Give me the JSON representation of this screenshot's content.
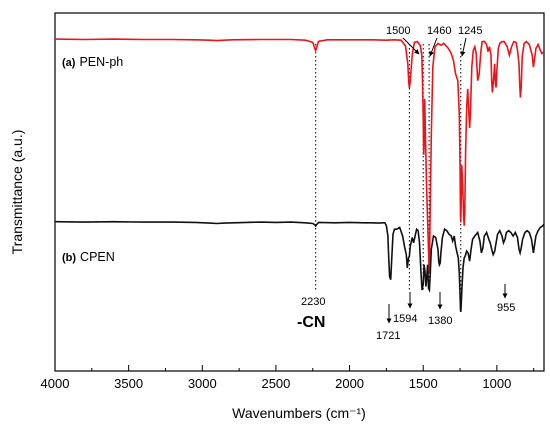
{
  "chart_data": {
    "type": "line",
    "xlabel": "Wavenumbers (cm⁻¹)",
    "ylabel": "Transmittance (a.u.)",
    "xlim": [
      4000,
      680
    ],
    "x_reversed": true,
    "ylim": [
      0,
      100
    ],
    "x_ticks": [
      4000,
      3500,
      3000,
      2500,
      2000,
      1500,
      1000
    ],
    "x_tick_labels": [
      "4000",
      "3500",
      "3000",
      "2500",
      "2000",
      "1500",
      "1000"
    ],
    "y_ticks_shown": false,
    "grid": false,
    "series": [
      {
        "name": "PEN-ph",
        "tag": "(a)",
        "color": "#e8161b",
        "points": [
          [
            4000,
            92.7
          ],
          [
            3800,
            92.6
          ],
          [
            3600,
            92.7
          ],
          [
            3400,
            92.6
          ],
          [
            3200,
            92.6
          ],
          [
            3050,
            92.5
          ],
          [
            2950,
            92.4
          ],
          [
            2900,
            92.3
          ],
          [
            2800,
            92.5
          ],
          [
            2600,
            92.6
          ],
          [
            2400,
            92.6
          ],
          [
            2300,
            92.4
          ],
          [
            2250,
            91.8
          ],
          [
            2235,
            89.9
          ],
          [
            2230,
            89.5
          ],
          [
            2225,
            90.2
          ],
          [
            2210,
            92.1
          ],
          [
            2150,
            92.5
          ],
          [
            2000,
            92.5
          ],
          [
            1850,
            92.5
          ],
          [
            1750,
            92.4
          ],
          [
            1700,
            92.5
          ],
          [
            1650,
            92.4
          ],
          [
            1620,
            90.8
          ],
          [
            1605,
            85.8
          ],
          [
            1598,
            80.5
          ],
          [
            1594,
            79.0
          ],
          [
            1588,
            81.1
          ],
          [
            1575,
            88.2
          ],
          [
            1560,
            91.8
          ],
          [
            1540,
            92.0
          ],
          [
            1520,
            90.9
          ],
          [
            1510,
            88.2
          ],
          [
            1505,
            81.1
          ],
          [
            1500,
            70.8
          ],
          [
            1497,
            60.4
          ],
          [
            1495,
            62.3
          ],
          [
            1490,
            76.0
          ],
          [
            1485,
            66.5
          ],
          [
            1478,
            52.4
          ],
          [
            1472,
            44.8
          ],
          [
            1466,
            36.8
          ],
          [
            1463,
            32.1
          ],
          [
            1460,
            27.4
          ],
          [
            1457,
            33.0
          ],
          [
            1452,
            47.2
          ],
          [
            1445,
            66.0
          ],
          [
            1435,
            84.9
          ],
          [
            1420,
            90.6
          ],
          [
            1400,
            91.5
          ],
          [
            1380,
            91.0
          ],
          [
            1360,
            91.5
          ],
          [
            1330,
            90.1
          ],
          [
            1310,
            88.7
          ],
          [
            1295,
            86.8
          ],
          [
            1280,
            83.0
          ],
          [
            1265,
            81.1
          ],
          [
            1255,
            71.7
          ],
          [
            1250,
            58.5
          ],
          [
            1247,
            43.4
          ],
          [
            1245,
            41.5
          ],
          [
            1242,
            48.1
          ],
          [
            1238,
            57.5
          ],
          [
            1232,
            51.9
          ],
          [
            1226,
            43.4
          ],
          [
            1222,
            40.6
          ],
          [
            1218,
            44.3
          ],
          [
            1212,
            61.3
          ],
          [
            1205,
            73.6
          ],
          [
            1198,
            78.8
          ],
          [
            1192,
            73.6
          ],
          [
            1185,
            67.9
          ],
          [
            1180,
            71.7
          ],
          [
            1170,
            84.9
          ],
          [
            1160,
            89.6
          ],
          [
            1150,
            90.6
          ],
          [
            1140,
            88.7
          ],
          [
            1130,
            81.1
          ],
          [
            1120,
            83.0
          ],
          [
            1110,
            88.7
          ],
          [
            1100,
            92.0
          ],
          [
            1085,
            92.1
          ],
          [
            1070,
            91.2
          ],
          [
            1060,
            89.2
          ],
          [
            1050,
            90.6
          ],
          [
            1040,
            88.2
          ],
          [
            1035,
            81.1
          ],
          [
            1030,
            77.8
          ],
          [
            1025,
            80.2
          ],
          [
            1015,
            85.8
          ],
          [
            1010,
            80.2
          ],
          [
            1005,
            79.2
          ],
          [
            1000,
            84.0
          ],
          [
            990,
            90.1
          ],
          [
            980,
            91.5
          ],
          [
            965,
            92.0
          ],
          [
            950,
            92.0
          ],
          [
            930,
            90.6
          ],
          [
            915,
            88.2
          ],
          [
            900,
            90.6
          ],
          [
            885,
            92.0
          ],
          [
            870,
            91.8
          ],
          [
            860,
            89.6
          ],
          [
            850,
            85.8
          ],
          [
            845,
            80.2
          ],
          [
            840,
            76.4
          ],
          [
            835,
            79.2
          ],
          [
            828,
            87.7
          ],
          [
            815,
            91.5
          ],
          [
            800,
            92.0
          ],
          [
            780,
            91.2
          ],
          [
            760,
            88.2
          ],
          [
            752,
            84.9
          ],
          [
            745,
            86.8
          ],
          [
            735,
            90.1
          ],
          [
            720,
            91.2
          ],
          [
            705,
            89.6
          ],
          [
            695,
            88.7
          ],
          [
            680,
            89.2
          ]
        ]
      },
      {
        "name": "CPEN",
        "tag": "(b)",
        "color": "#111111",
        "points": [
          [
            4000,
            41.7
          ],
          [
            3800,
            41.6
          ],
          [
            3600,
            41.7
          ],
          [
            3400,
            41.6
          ],
          [
            3200,
            41.6
          ],
          [
            3050,
            41.5
          ],
          [
            2950,
            41.3
          ],
          [
            2900,
            41.2
          ],
          [
            2850,
            41.3
          ],
          [
            2700,
            41.5
          ],
          [
            2600,
            41.6
          ],
          [
            2500,
            41.5
          ],
          [
            2400,
            41.6
          ],
          [
            2300,
            41.4
          ],
          [
            2250,
            41.2
          ],
          [
            2235,
            40.8
          ],
          [
            2230,
            40.5
          ],
          [
            2225,
            40.8
          ],
          [
            2210,
            41.5
          ],
          [
            2100,
            41.4
          ],
          [
            2000,
            41.5
          ],
          [
            1900,
            41.4
          ],
          [
            1850,
            41.4
          ],
          [
            1800,
            41.3
          ],
          [
            1780,
            41.4
          ],
          [
            1760,
            41.4
          ],
          [
            1750,
            40.6
          ],
          [
            1740,
            37.7
          ],
          [
            1735,
            32.5
          ],
          [
            1728,
            26.4
          ],
          [
            1721,
            25.5
          ],
          [
            1714,
            31.1
          ],
          [
            1705,
            38.2
          ],
          [
            1695,
            39.6
          ],
          [
            1680,
            39.6
          ],
          [
            1660,
            40.1
          ],
          [
            1640,
            37.7
          ],
          [
            1625,
            34.4
          ],
          [
            1615,
            32.5
          ],
          [
            1608,
            28.8
          ],
          [
            1600,
            31.6
          ],
          [
            1594,
            32.1
          ],
          [
            1588,
            34.9
          ],
          [
            1575,
            37.3
          ],
          [
            1565,
            35.8
          ],
          [
            1555,
            37.7
          ],
          [
            1545,
            39.6
          ],
          [
            1535,
            39.2
          ],
          [
            1525,
            35.8
          ],
          [
            1515,
            27.4
          ],
          [
            1508,
            22.6
          ],
          [
            1500,
            24.1
          ],
          [
            1494,
            29.7
          ],
          [
            1488,
            27.8
          ],
          [
            1482,
            23.6
          ],
          [
            1476,
            26.4
          ],
          [
            1470,
            29.7
          ],
          [
            1464,
            23.1
          ],
          [
            1458,
            22.6
          ],
          [
            1452,
            27.4
          ],
          [
            1445,
            34.0
          ],
          [
            1430,
            37.7
          ],
          [
            1415,
            37.3
          ],
          [
            1400,
            34.0
          ],
          [
            1395,
            30.7
          ],
          [
            1390,
            29.7
          ],
          [
            1385,
            30.2
          ],
          [
            1380,
            33.0
          ],
          [
            1370,
            37.3
          ],
          [
            1355,
            39.6
          ],
          [
            1340,
            39.2
          ],
          [
            1325,
            38.2
          ],
          [
            1310,
            37.7
          ],
          [
            1300,
            36.3
          ],
          [
            1290,
            37.7
          ],
          [
            1280,
            34.9
          ],
          [
            1270,
            33.0
          ],
          [
            1262,
            31.6
          ],
          [
            1255,
            27.4
          ],
          [
            1250,
            21.7
          ],
          [
            1247,
            17.0
          ],
          [
            1245,
            16.5
          ],
          [
            1242,
            18.4
          ],
          [
            1237,
            23.6
          ],
          [
            1230,
            28.8
          ],
          [
            1222,
            31.6
          ],
          [
            1215,
            32.1
          ],
          [
            1205,
            33.5
          ],
          [
            1195,
            33.0
          ],
          [
            1185,
            30.7
          ],
          [
            1175,
            34.0
          ],
          [
            1165,
            36.8
          ],
          [
            1150,
            37.7
          ],
          [
            1130,
            38.7
          ],
          [
            1115,
            36.3
          ],
          [
            1105,
            33.0
          ],
          [
            1095,
            34.4
          ],
          [
            1085,
            37.7
          ],
          [
            1070,
            38.7
          ],
          [
            1055,
            36.8
          ],
          [
            1045,
            35.8
          ],
          [
            1035,
            34.0
          ],
          [
            1025,
            32.5
          ],
          [
            1015,
            33.5
          ],
          [
            1005,
            35.8
          ],
          [
            995,
            38.2
          ],
          [
            980,
            39.2
          ],
          [
            965,
            37.7
          ],
          [
            955,
            35.8
          ],
          [
            945,
            36.8
          ],
          [
            935,
            38.7
          ],
          [
            920,
            39.2
          ],
          [
            905,
            38.7
          ],
          [
            890,
            37.7
          ],
          [
            875,
            38.7
          ],
          [
            860,
            37.3
          ],
          [
            850,
            34.0
          ],
          [
            842,
            33.0
          ],
          [
            835,
            34.4
          ],
          [
            825,
            36.8
          ],
          [
            810,
            38.7
          ],
          [
            795,
            39.2
          ],
          [
            780,
            38.7
          ],
          [
            765,
            36.8
          ],
          [
            752,
            33.0
          ],
          [
            745,
            34.9
          ],
          [
            735,
            37.7
          ],
          [
            720,
            39.2
          ],
          [
            705,
            40.1
          ],
          [
            690,
            40.5
          ],
          [
            680,
            41.0
          ]
        ]
      }
    ],
    "reference_lines": [
      2230,
      1594,
      1500,
      1460,
      1245
    ],
    "annotations": {
      "a_1500": "1500",
      "a_1460": "1460",
      "a_1245": "1245",
      "b_2230": "2230",
      "b_cn": "-CN",
      "b_1721": "1721",
      "b_1594": "1594",
      "b_1380": "1380",
      "b_955": "955"
    }
  }
}
